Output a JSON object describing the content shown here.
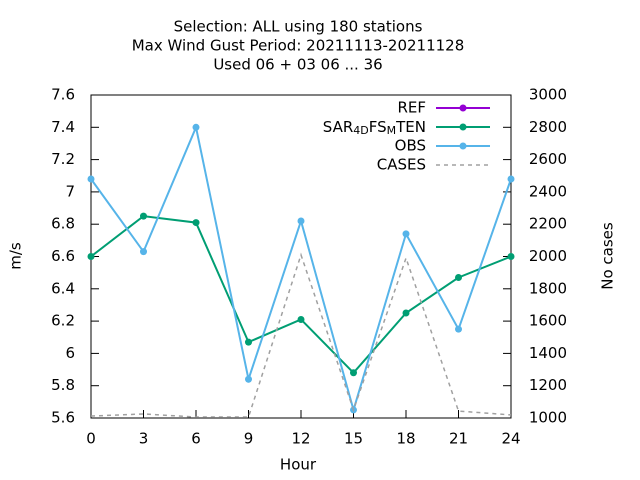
{
  "chart_data": {
    "type": "line",
    "title": [
      "Selection: ALL using   180 stations",
      "Max Wind Gust   Period: 20211113-20211128",
      "Used  06 + 03 06 ... 36"
    ],
    "xlabel": "Hour",
    "ylabel": "m/s",
    "y2label": "No cases",
    "x": [
      0,
      3,
      6,
      9,
      12,
      15,
      18,
      21,
      24
    ],
    "xlim": [
      0,
      24
    ],
    "xticks": [
      0,
      3,
      6,
      9,
      12,
      15,
      18,
      21,
      24
    ],
    "ylim": [
      5.6,
      7.6
    ],
    "yticks": [
      5.6,
      5.8,
      {
        "value": 6,
        "label": "6"
      },
      6.2,
      6.4,
      6.6,
      6.8,
      {
        "value": 7,
        "label": "7"
      },
      7.2,
      7.4,
      7.6
    ],
    "y2lim": [
      1000,
      3000
    ],
    "y2ticks": [
      1000,
      1200,
      1400,
      1600,
      1800,
      2000,
      2200,
      2400,
      2600,
      2800,
      3000
    ],
    "legend": "top-right",
    "series": [
      {
        "name": "REF",
        "color": "#9400d3",
        "values": [
          null,
          null,
          null,
          null,
          null,
          null,
          null,
          null,
          null
        ]
      },
      {
        "name": "SAR_{4D}FS_{M}TEN",
        "color": "#009e73",
        "values": [
          6.6,
          6.85,
          6.81,
          6.07,
          6.21,
          5.88,
          6.25,
          6.47,
          6.6
        ]
      },
      {
        "name": "OBS",
        "color": "#56b4e9",
        "values": [
          7.08,
          6.63,
          7.4,
          5.84,
          6.82,
          5.65,
          6.74,
          6.15,
          7.08
        ]
      },
      {
        "name": "CASES",
        "color": "#a0a0a0",
        "axis": "y2",
        "dash": true,
        "values": [
          1012,
          1025,
          1006,
          1006,
          2010,
          1050,
          1990,
          1043,
          1019
        ]
      }
    ]
  }
}
